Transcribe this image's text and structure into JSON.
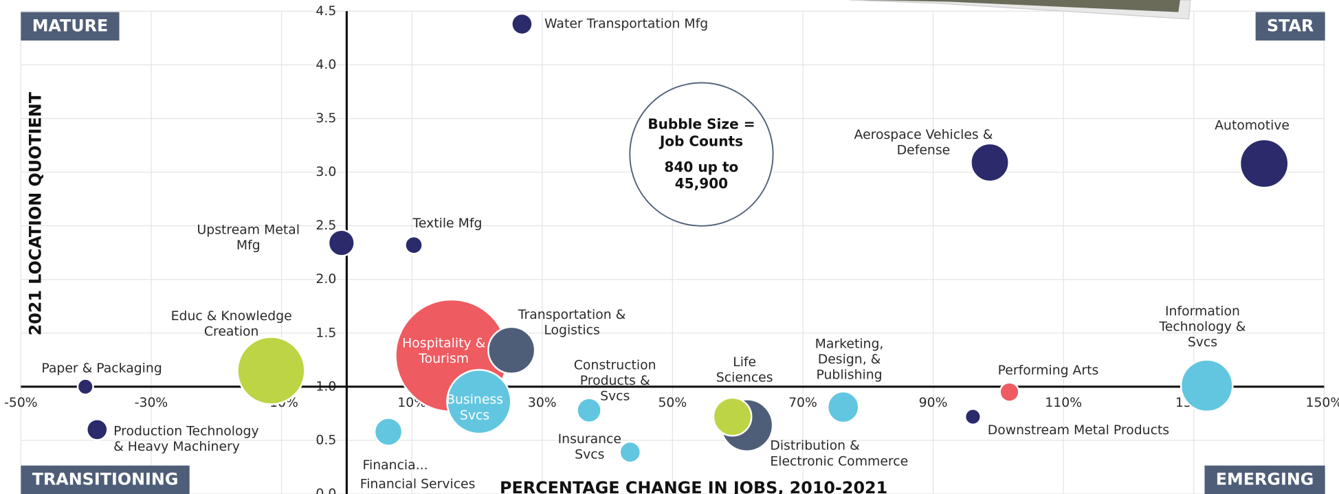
{
  "chart_data": {
    "type": "bubble",
    "xlabel": "PERCENTAGE CHANGE IN JOBS, 2010-2021",
    "ylabel": "2021 LOCATION QUOTIENT",
    "xlim": [
      -50,
      150
    ],
    "ylim": [
      0,
      4.5
    ],
    "xticks": [
      {
        "value": -50,
        "label": "-50%"
      },
      {
        "value": -30,
        "label": "-30%"
      },
      {
        "value": -10,
        "label": "-10%"
      },
      {
        "value": 10,
        "label": "10%"
      },
      {
        "value": 30,
        "label": "30%"
      },
      {
        "value": 50,
        "label": "50%"
      },
      {
        "value": 70,
        "label": "70%"
      },
      {
        "value": 90,
        "label": "90%"
      },
      {
        "value": 110,
        "label": "110%"
      },
      {
        "value": 130,
        "label": "130%"
      },
      {
        "value": 150,
        "label": "150%"
      }
    ],
    "yticks": [
      {
        "value": 0,
        "label": "0.0"
      },
      0.5,
      {
        "value": 1,
        "label": "1.0"
      },
      1.5,
      {
        "value": 2,
        "label": "2.0"
      },
      2.5,
      {
        "value": 3,
        "label": "3.0"
      },
      3.5,
      {
        "value": 4,
        "label": "4.0"
      },
      4.5
    ],
    "xaxis_crosses": 1,
    "yaxis_crosses": 0,
    "grid": true,
    "size_range": [
      840,
      45900
    ],
    "quadrants": [
      "MATURE",
      "STAR",
      "TRANSITIONING",
      "EMERGING"
    ],
    "legend_note": [
      [
        "Bubble Size =",
        "Job Counts"
      ],
      [
        "840 up to",
        "45,900"
      ]
    ],
    "annotation": "Financial Services",
    "points": [
      {
        "label": [
          "Water Transportation Mfg"
        ],
        "x": 26.9,
        "y": 4.38,
        "size": 1564,
        "color": "#2b2a6b"
      },
      {
        "label": [
          "Aerospace Vehicles &",
          "Defense"
        ],
        "x": 98.7,
        "y": 3.09,
        "size": 5258,
        "color": "#2b2a6b"
      },
      {
        "label": [
          "Automotive"
        ],
        "x": 140.8,
        "y": 3.08,
        "size": 8517,
        "color": "#2b2a6b"
      },
      {
        "label": [
          "Upstream Metal",
          "Mfg"
        ],
        "x": -0.8,
        "y": 2.34,
        "size": 2444,
        "color": "#2b2a6b"
      },
      {
        "label": [
          "Textile Mfg"
        ],
        "x": 10.3,
        "y": 2.32,
        "size": 1086,
        "color": "#2b2a6b"
      },
      {
        "label": [
          "Educ & Knowledge",
          "Creation"
        ],
        "x": -11.6,
        "y": 1.15,
        "size": 16524,
        "color": "#bdd444"
      },
      {
        "label": [
          "Paper & Packaging"
        ],
        "x": -40.1,
        "y": 1.0,
        "size": 880,
        "color": "#2b2a6b"
      },
      {
        "label": [
          "Production Technology",
          "& Heavy Machinery"
        ],
        "x": -38.3,
        "y": 0.6,
        "size": 1564,
        "color": "#2b2a6b"
      },
      {
        "label": [
          "Hospitality &",
          "Tourism"
        ],
        "x": 16.1,
        "y": 1.29,
        "size": 45900,
        "color": "#ee5b61"
      },
      {
        "label": [
          "Transportation &",
          "Logistics"
        ],
        "x": 25.3,
        "y": 1.34,
        "size": 7920,
        "color": "#4e5e78"
      },
      {
        "label": [
          "Business",
          "Svcs"
        ],
        "x": 20.3,
        "y": 0.86,
        "size": 14872,
        "color": "#62c6e0"
      },
      {
        "label": [
          "Financia..."
        ],
        "x": 6.4,
        "y": 0.58,
        "size": 2781,
        "color": "#62c6e0"
      },
      {
        "label": [
          "Construction",
          "Products &",
          "Svcs"
        ],
        "x": 37.2,
        "y": 0.78,
        "size": 2128,
        "color": "#62c6e0"
      },
      {
        "label": [
          "Insurance",
          "Svcs"
        ],
        "x": 43.5,
        "y": 0.39,
        "size": 1564,
        "color": "#62c6e0"
      },
      {
        "label": [
          "Distribution &",
          "Electronic Commerce"
        ],
        "x": 61.4,
        "y": 0.64,
        "size": 9778,
        "color": "#4e5e78"
      },
      {
        "label": [
          "Life",
          "Sciences"
        ],
        "x": 59.2,
        "y": 0.72,
        "size": 5258,
        "color": "#bdd444"
      },
      {
        "label": [
          "Marketing,",
          "Design, &",
          "Publishing"
        ],
        "x": 76.2,
        "y": 0.81,
        "size": 3520,
        "color": "#62c6e0"
      },
      {
        "label": [
          "Performing Arts"
        ],
        "x": 101.7,
        "y": 0.95,
        "size": 1318,
        "color": "#ee5b61"
      },
      {
        "label": [
          "Downstream Metal Products"
        ],
        "x": 96.1,
        "y": 0.72,
        "size": 880,
        "color": "#2b2a6b"
      },
      {
        "label": [
          "Information",
          "Technology &",
          "Svcs"
        ],
        "x": 132.0,
        "y": 1.01,
        "size": 9778,
        "color": "#62c6e0"
      }
    ]
  }
}
